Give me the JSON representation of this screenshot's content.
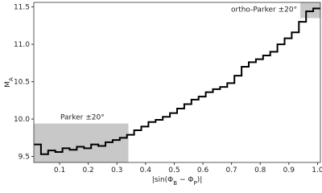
{
  "chart_data": {
    "type": "step",
    "ylabel": [
      "M",
      "A"
    ],
    "xlabel": [
      "|sin(Φ",
      "B",
      " − Φ",
      "P",
      ")|"
    ],
    "x": [
      0.01,
      0.035,
      0.06,
      0.085,
      0.11,
      0.135,
      0.16,
      0.185,
      0.21,
      0.235,
      0.26,
      0.285,
      0.31,
      0.335,
      0.36,
      0.385,
      0.41,
      0.435,
      0.46,
      0.485,
      0.51,
      0.535,
      0.56,
      0.585,
      0.61,
      0.635,
      0.66,
      0.685,
      0.71,
      0.735,
      0.76,
      0.785,
      0.81,
      0.835,
      0.86,
      0.885,
      0.91,
      0.935,
      0.96,
      0.985
    ],
    "values": [
      9.66,
      9.53,
      9.58,
      9.56,
      9.61,
      9.59,
      9.63,
      9.61,
      9.66,
      9.64,
      9.69,
      9.72,
      9.75,
      9.79,
      9.85,
      9.9,
      9.96,
      9.99,
      10.03,
      10.08,
      10.14,
      10.2,
      10.26,
      10.3,
      10.36,
      10.4,
      10.43,
      10.48,
      10.58,
      10.7,
      10.76,
      10.8,
      10.85,
      10.9,
      11.0,
      11.08,
      11.16,
      11.3,
      11.44,
      11.48
    ],
    "color": "#000000",
    "xlim": [
      0.01,
      1.01
    ],
    "ylim": [
      9.42,
      11.56
    ],
    "xticks": [
      0.1,
      0.2,
      0.3,
      0.4,
      0.5,
      0.6,
      0.7,
      0.8,
      0.9,
      {
        "value": 1,
        "label": "1.0"
      }
    ],
    "yticks": [
      9.5,
      {
        "value": 10,
        "label": "10.0"
      },
      10.5,
      {
        "value": 11,
        "label": "11.0"
      },
      11.5
    ],
    "regions": [
      {
        "label": "Parker ±20°",
        "x": [
          0.01,
          0.34
        ],
        "y": [
          9.42,
          9.94
        ],
        "color": "#c8c8c8"
      },
      {
        "label": "ortho-Parker ±20°",
        "x": [
          0.94,
          1.01
        ],
        "y": [
          11.35,
          11.56
        ],
        "color": "#c8c8c8"
      }
    ]
  }
}
